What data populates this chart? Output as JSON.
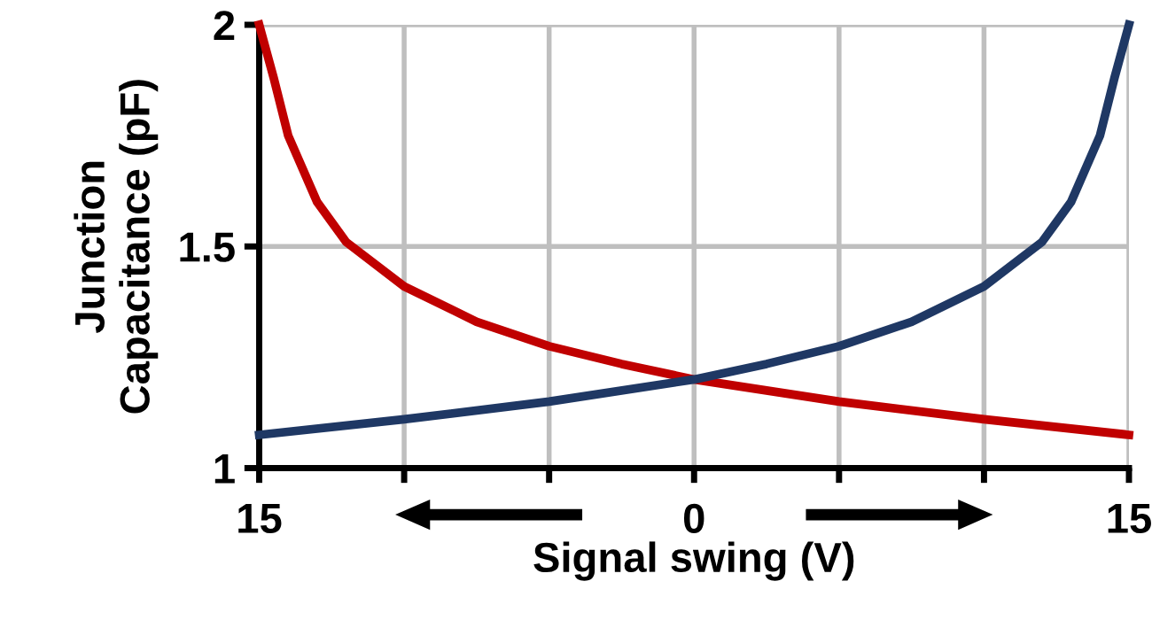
{
  "chart_data": {
    "type": "line",
    "xlabel": "Signal swing (V)",
    "ylabel": "Junction\nCapacitance (pF)",
    "series": [
      {
        "color": "#c00000",
        "x": [
          -15,
          -14.5,
          -14,
          -13,
          -12,
          -10,
          -7.5,
          -5,
          -2.5,
          0,
          5,
          10,
          15
        ],
        "values": [
          2.0,
          1.88,
          1.75,
          1.6,
          1.51,
          1.41,
          1.33,
          1.275,
          1.235,
          1.2,
          1.15,
          1.11,
          1.075
        ]
      },
      {
        "color": "#1f3864",
        "x": [
          -15,
          -10,
          -5,
          0,
          2.5,
          5,
          7.5,
          10,
          12,
          13,
          14,
          14.5,
          15
        ],
        "values": [
          1.075,
          1.11,
          1.15,
          1.2,
          1.235,
          1.275,
          1.33,
          1.41,
          1.51,
          1.6,
          1.75,
          1.88,
          2.0
        ]
      }
    ],
    "xlim": [
      -15,
      15
    ],
    "ylim": [
      1,
      2
    ],
    "xticks": [
      {
        "value": -15,
        "label": "15"
      },
      {
        "value": -10,
        "label": null
      },
      {
        "value": -5,
        "label": null
      },
      0,
      {
        "value": 5,
        "label": null
      },
      {
        "value": 10,
        "label": null
      },
      {
        "value": 15,
        "label": "15"
      }
    ],
    "yticks": [
      1,
      1.5,
      2
    ],
    "grid": true,
    "marker": "none",
    "line_style": "solid"
  }
}
